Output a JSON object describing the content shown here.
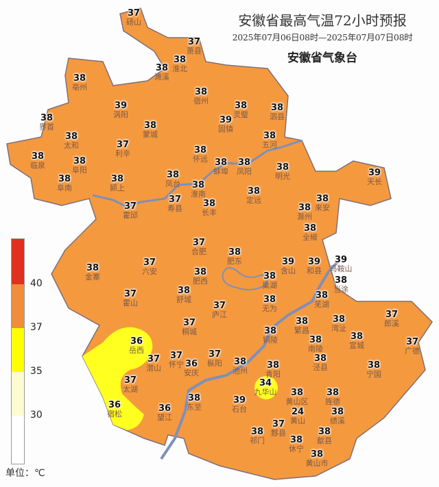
{
  "header": {
    "title": "安徽省最高气温72小时预报",
    "period": "2025年07月06日08时—2025年07月07日08时",
    "issuer": "安徽省气象台"
  },
  "legend": {
    "bands": [
      {
        "range": ">40",
        "color": "#e03020"
      },
      {
        "range": "37-40",
        "color": "#f08c3c"
      },
      {
        "range": "35-37",
        "color": "#ffff00"
      },
      {
        "range": "30-35",
        "color": "#fffbd0"
      },
      {
        "range": "<30",
        "color": "#ffffff"
      }
    ],
    "ticks": [
      "40",
      "37",
      "35",
      "30"
    ],
    "unit": "单位：℃"
  },
  "colors": {
    "province_fill": "#f5993f",
    "border": "#7d6e78",
    "river": "#7f8fb8",
    "yellow_zone": "#ffff20"
  },
  "stations": [
    {
      "name": "砀山",
      "value": "37"
    },
    {
      "name": "萧县",
      "value": "37"
    },
    {
      "name": "淮北",
      "value": "38"
    },
    {
      "name": "濉溪",
      "value": "38"
    },
    {
      "name": "亳州",
      "value": "38"
    },
    {
      "name": "宿州",
      "value": "38"
    },
    {
      "name": "涡阳",
      "value": "39"
    },
    {
      "name": "灵璧",
      "value": "38"
    },
    {
      "name": "泗县",
      "value": "38"
    },
    {
      "name": "界首",
      "value": "38"
    },
    {
      "name": "蒙城",
      "value": "38"
    },
    {
      "name": "固镇",
      "value": "39"
    },
    {
      "name": "太和",
      "value": "38"
    },
    {
      "name": "利辛",
      "value": "37"
    },
    {
      "name": "五河",
      "value": "38"
    },
    {
      "name": "怀远",
      "value": "38"
    },
    {
      "name": "临泉",
      "value": "38"
    },
    {
      "name": "阜阳",
      "value": "38"
    },
    {
      "name": "蚌埠",
      "value": "38"
    },
    {
      "name": "凤阳",
      "value": "38"
    },
    {
      "name": "明光",
      "value": "38"
    },
    {
      "name": "天长",
      "value": "39"
    },
    {
      "name": "阜南",
      "value": "38"
    },
    {
      "name": "颍上",
      "value": "38"
    },
    {
      "name": "凤台",
      "value": "38"
    },
    {
      "name": "淮南",
      "value": "38"
    },
    {
      "name": "定远",
      "value": "38"
    },
    {
      "name": "寿县",
      "value": "37"
    },
    {
      "name": "长丰",
      "value": "38"
    },
    {
      "name": "霍邱",
      "value": "37"
    },
    {
      "name": "来安",
      "value": "38"
    },
    {
      "name": "滁州",
      "value": "38"
    },
    {
      "name": "全椒",
      "value": "38"
    },
    {
      "name": "合肥",
      "value": "37"
    },
    {
      "name": "肥东",
      "value": "38"
    },
    {
      "name": "金寨",
      "value": "38"
    },
    {
      "name": "六安",
      "value": "37"
    },
    {
      "name": "肥西",
      "value": "38"
    },
    {
      "name": "巢湖",
      "value": "38"
    },
    {
      "name": "舒城",
      "value": "38"
    },
    {
      "name": "含山",
      "value": "39"
    },
    {
      "name": "和县",
      "value": "39"
    },
    {
      "name": "马鞍山",
      "value": "39"
    },
    {
      "name": "当涂",
      "value": "38"
    },
    {
      "name": "霍山",
      "value": "37"
    },
    {
      "name": "庐江",
      "value": "37"
    },
    {
      "name": "无为",
      "value": "38"
    },
    {
      "name": "芜湖",
      "value": "38"
    },
    {
      "name": "桐城",
      "value": "37"
    },
    {
      "name": "郎溪",
      "value": "37"
    },
    {
      "name": "湾沚",
      "value": "38"
    },
    {
      "name": "繁昌",
      "value": "38"
    },
    {
      "name": "宣城",
      "value": "38"
    },
    {
      "name": "南陵",
      "value": "38"
    },
    {
      "name": "岳西",
      "value": "36"
    },
    {
      "name": "铜陵",
      "value": "38"
    },
    {
      "name": "广德",
      "value": "37"
    },
    {
      "name": "泾县",
      "value": "38"
    },
    {
      "name": "潜山",
      "value": "37"
    },
    {
      "name": "怀宁",
      "value": "37"
    },
    {
      "name": "枞阳",
      "value": "37"
    },
    {
      "name": "安庆",
      "value": "36"
    },
    {
      "name": "池州",
      "value": "38"
    },
    {
      "name": "青阳",
      "value": "38"
    },
    {
      "name": "九华山",
      "value": "34"
    },
    {
      "name": "宁国",
      "value": "38"
    },
    {
      "name": "太湖",
      "value": "37"
    },
    {
      "name": "黄山区",
      "value": "38"
    },
    {
      "name": "旌德",
      "value": "38"
    },
    {
      "name": "黄山",
      "value": "24"
    },
    {
      "name": "东至",
      "value": "38"
    },
    {
      "name": "石台",
      "value": "39"
    },
    {
      "name": "宿松",
      "value": "36"
    },
    {
      "name": "望江",
      "value": "36"
    },
    {
      "name": "绩溪",
      "value": "38"
    },
    {
      "name": "黟县",
      "value": "37"
    },
    {
      "name": "祁门",
      "value": "38"
    },
    {
      "name": "歙县",
      "value": "38"
    },
    {
      "name": "休宁",
      "value": "38"
    },
    {
      "name": "黄山市",
      "value": "38"
    }
  ]
}
